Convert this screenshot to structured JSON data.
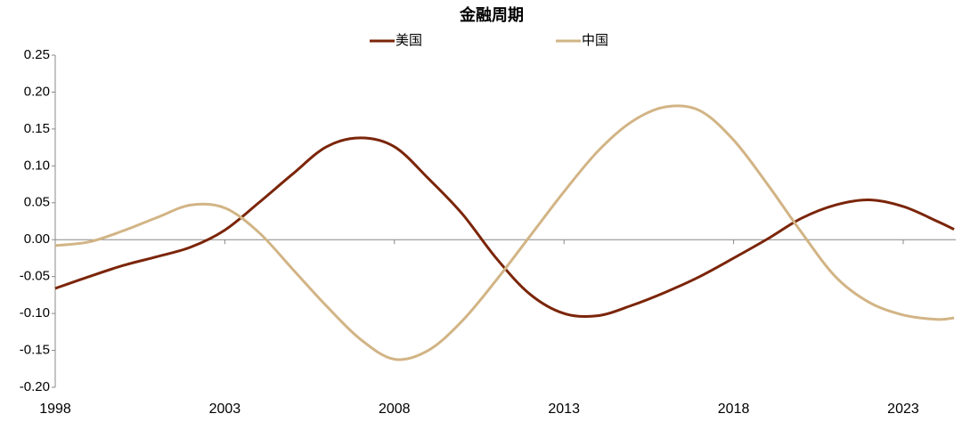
{
  "chart_data": {
    "type": "line",
    "title": "金融周期",
    "x": [
      1998,
      1999,
      2000,
      2001,
      2002,
      2003,
      2004,
      2005,
      2006,
      2007,
      2008,
      2009,
      2010,
      2011,
      2012,
      2013,
      2014,
      2015,
      2016,
      2017,
      2018,
      2019,
      2020,
      2021,
      2022,
      2023,
      2024,
      2024.5
    ],
    "series": [
      {
        "name": "美国",
        "color": "#7b2509",
        "values": [
          -0.066,
          -0.05,
          -0.035,
          -0.023,
          -0.01,
          0.013,
          0.05,
          0.089,
          0.126,
          0.138,
          0.126,
          0.083,
          0.035,
          -0.025,
          -0.074,
          -0.1,
          -0.103,
          -0.089,
          -0.071,
          -0.05,
          -0.025,
          0.001,
          0.029,
          0.047,
          0.054,
          0.045,
          0.025,
          0.014
        ]
      },
      {
        "name": "中国",
        "color": "#d2b485",
        "values": [
          -0.008,
          -0.003,
          0.012,
          0.03,
          0.047,
          0.043,
          0.01,
          -0.04,
          -0.09,
          -0.135,
          -0.162,
          -0.15,
          -0.11,
          -0.055,
          0.005,
          0.065,
          0.12,
          0.16,
          0.18,
          0.175,
          0.135,
          0.075,
          0.01,
          -0.05,
          -0.085,
          -0.102,
          -0.108,
          -0.106
        ]
      }
    ],
    "xlim": [
      1998,
      2024.55
    ],
    "xticks": [
      1998,
      2003,
      2008,
      2013,
      2018,
      2023
    ],
    "ylim": [
      -0.2,
      0.25
    ],
    "yticks": [
      -0.15,
      {
        "value": -0.2,
        "label": "-0.20"
      },
      {
        "value": -0.1,
        "label": "-0.10"
      },
      -0.05,
      {
        "value": 0,
        "label": "0.00"
      },
      0.05,
      {
        "value": 0.1,
        "label": "0.10"
      },
      0.15,
      {
        "value": 0.2,
        "label": "0.20"
      },
      0.25
    ],
    "legend": "top"
  }
}
